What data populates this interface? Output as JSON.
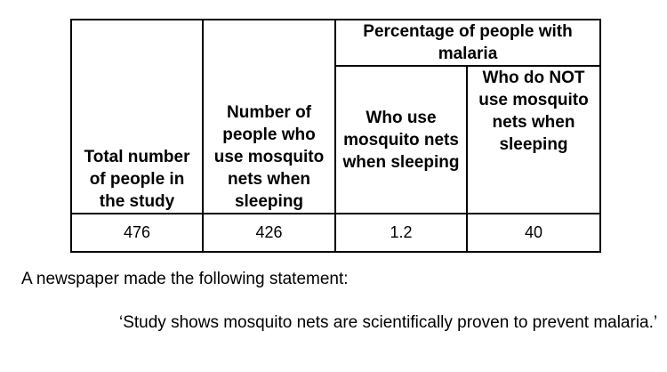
{
  "table": {
    "headers": {
      "total_people": "Total number of people in the study",
      "use_nets": "Number of people who use mosquito nets when sleeping",
      "percentage_group": "Percentage of people with malaria",
      "who_use": "Who use mosquito nets when sleeping",
      "who_do_not_use": "Who do NOT use mosquito nets when sleeping"
    },
    "row": {
      "total_people": "476",
      "use_nets": "426",
      "pct_use": "1.2",
      "pct_not_use": "40"
    }
  },
  "statement": "A newspaper made the following statement:",
  "quote": "‘Study shows mosquito nets are scientifically proven to prevent malaria.’"
}
